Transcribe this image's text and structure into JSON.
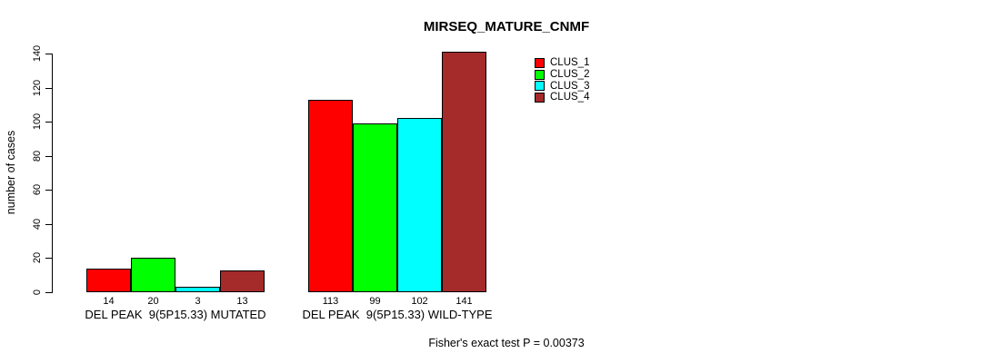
{
  "chart_data": {
    "type": "bar",
    "title": "MIRSEQ_MATURE_CNMF",
    "ylabel": "number of cases",
    "xlabel": "",
    "ylim": [
      0,
      140
    ],
    "yticks": [
      0,
      20,
      40,
      60,
      80,
      100,
      120,
      140
    ],
    "grid": false,
    "background": "#FFFFFF",
    "axis_color": "#000000",
    "text_color": "#000000",
    "categories": [
      "DEL PEAK  9(5P15.33) MUTATED",
      "DEL PEAK  9(5P15.33) WILD-TYPE"
    ],
    "series": [
      {
        "name": "CLUS_1",
        "color": "#FF0000",
        "values": [
          14,
          113
        ]
      },
      {
        "name": "CLUS_2",
        "color": "#00FF00",
        "values": [
          20,
          99
        ]
      },
      {
        "name": "CLUS_3",
        "color": "#00FFFF",
        "values": [
          3,
          102
        ]
      },
      {
        "name": "CLUS_4",
        "color": "#A52A2A",
        "values": [
          13,
          141
        ]
      }
    ],
    "bar_value_labels": [
      [
        "14",
        "20",
        "3",
        "13"
      ],
      [
        "113",
        "99",
        "102",
        "141"
      ]
    ],
    "legend": {
      "position": "top-right-inside",
      "entries": [
        "CLUS_1",
        "CLUS_2",
        "CLUS_3",
        "CLUS_4"
      ]
    },
    "annotation": "Fisher's exact test P = 0.00373"
  }
}
